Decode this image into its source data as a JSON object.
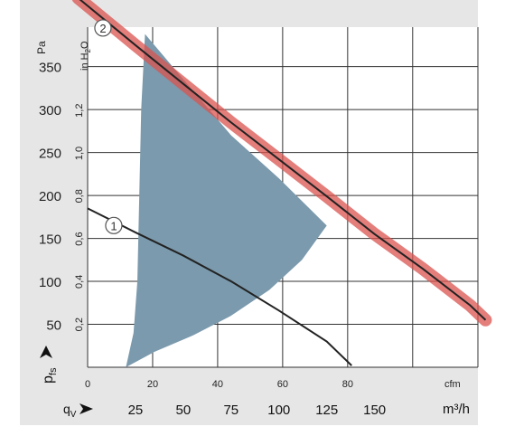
{
  "chart_data": {
    "type": "line",
    "title": "",
    "units": {
      "pressure_pa": "Pa",
      "pressure_in": "in H₂O",
      "pressure_in_main": "in H",
      "pressure_in_sub": "2",
      "pressure_in_tail": "O",
      "flow_cfm": "cfm",
      "flow_m3h": "m³/h"
    },
    "axis_labels": {
      "y": "p",
      "y_sub": "fs",
      "x": "q",
      "x_sub": "V"
    },
    "y_pa_ticks": [
      "50",
      "100",
      "150",
      "200",
      "250",
      "300",
      "350"
    ],
    "y_in_ticks": [
      "0,2",
      "0,4",
      "0,6",
      "0,8",
      "1,0",
      "1,2"
    ],
    "x_cfm_ticks": [
      "0",
      "20",
      "40",
      "60",
      "80"
    ],
    "x_m3h_ticks": [
      "25",
      "50",
      "75",
      "100",
      "125",
      "150"
    ],
    "xlim_m3h": [
      0,
      204
    ],
    "ylim_pa": [
      0,
      396
    ],
    "grid": true,
    "operating_range": {
      "color": "#7b9aad",
      "outline_m3h_pa": [
        [
          30,
          388
        ],
        [
          52,
          330
        ],
        [
          75,
          270
        ],
        [
          100,
          220
        ],
        [
          125,
          165
        ],
        [
          112,
          125
        ],
        [
          95,
          90
        ],
        [
          75,
          60
        ],
        [
          55,
          37
        ],
        [
          35,
          18
        ],
        [
          20,
          0
        ],
        [
          24,
          40
        ],
        [
          26,
          100
        ],
        [
          27,
          200
        ],
        [
          28,
          300
        ],
        [
          30,
          388
        ]
      ]
    },
    "series": [
      {
        "name": "1",
        "color": "#222222",
        "values_m3h_pa": [
          [
            0,
            185
          ],
          [
            25,
            157
          ],
          [
            50,
            130
          ],
          [
            75,
            100
          ],
          [
            100,
            66
          ],
          [
            125,
            30
          ],
          [
            138,
            2
          ]
        ]
      },
      {
        "name": "2",
        "color": "#222222",
        "highlight": "#d9534f",
        "values_m3h_pa": [
          [
            -5,
            430
          ],
          [
            25,
            375
          ],
          [
            50,
            330
          ],
          [
            75,
            285
          ],
          [
            100,
            242
          ],
          [
            125,
            199
          ],
          [
            150,
            155
          ],
          [
            175,
            115
          ],
          [
            200,
            72
          ],
          [
            208,
            55
          ]
        ]
      }
    ]
  }
}
